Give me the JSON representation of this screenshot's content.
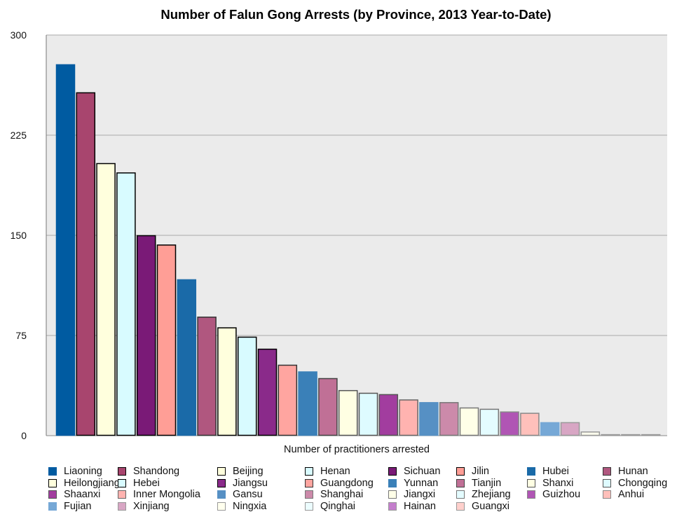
{
  "chart_data": {
    "type": "bar",
    "title": "Number of Falun Gong Arrests (by Province, 2013 Year-to-Date)",
    "xlabel": "Number of practitioners arrested",
    "ylabel": "",
    "ylim": [
      0,
      300
    ],
    "yticks": [
      "0",
      "75",
      "150",
      "225",
      "300"
    ],
    "grid": true,
    "legend_position": "bottom",
    "series": [
      {
        "name": "Liaoning",
        "value": 278,
        "color": "#005ba1",
        "border": "#005ba1"
      },
      {
        "name": "Shandong",
        "value": 257,
        "color": "#a8456e",
        "border": "#000000"
      },
      {
        "name": "Beijing",
        "value": 204,
        "color": "#ffffdd",
        "border": "#000000"
      },
      {
        "name": "Henan",
        "value": 197,
        "color": "#d8fbff",
        "border": "#000000"
      },
      {
        "name": "Sichuan",
        "value": 150,
        "color": "#7a1a77",
        "border": "#000000"
      },
      {
        "name": "Jilin",
        "value": 143,
        "color": "#ff9e96",
        "border": "#000000"
      },
      {
        "name": "Hubei",
        "value": 117,
        "color": "#1a6aa8",
        "border": "#1a6aa8"
      },
      {
        "name": "Hunan",
        "value": 89,
        "color": "#b0577f",
        "border": "#333333"
      },
      {
        "name": "Heilongjiang",
        "value": 81,
        "color": "#ffffdd",
        "border": "#000000"
      },
      {
        "name": "Hebei",
        "value": 74,
        "color": "#d8fbff",
        "border": "#000000"
      },
      {
        "name": "Jiangsu",
        "value": 65,
        "color": "#8a2a8a",
        "border": "#000000"
      },
      {
        "name": "Guangdong",
        "value": 53,
        "color": "#ffa5a0",
        "border": "#333333"
      },
      {
        "name": "Yunnan",
        "value": 48,
        "color": "#3a80b8",
        "border": "#3a80b8"
      },
      {
        "name": "Tianjin",
        "value": 43,
        "color": "#c07096",
        "border": "#444444"
      },
      {
        "name": "Shanxi",
        "value": 34,
        "color": "#ffffe3",
        "border": "#555555"
      },
      {
        "name": "Chongqing",
        "value": 32,
        "color": "#defbff",
        "border": "#555555"
      },
      {
        "name": "Shaanxi",
        "value": 31,
        "color": "#a23d9f",
        "border": "#555555"
      },
      {
        "name": "Inner Mongolia",
        "value": 27,
        "color": "#ffb3b0",
        "border": "#666666"
      },
      {
        "name": "Gansu",
        "value": 25,
        "color": "#5690c4",
        "border": "#5690c4"
      },
      {
        "name": "Shanghai",
        "value": 25,
        "color": "#cc8aaa",
        "border": "#777777"
      },
      {
        "name": "Jiangxi",
        "value": 21,
        "color": "#ffffe8",
        "border": "#777777"
      },
      {
        "name": "Zhejiang",
        "value": 20,
        "color": "#e4fcff",
        "border": "#777777"
      },
      {
        "name": "Guizhou",
        "value": 18,
        "color": "#b055b4",
        "border": "#888888"
      },
      {
        "name": "Anhui",
        "value": 17,
        "color": "#ffc0bb",
        "border": "#888888"
      },
      {
        "name": "Fujian",
        "value": 10,
        "color": "#76a8d6",
        "border": "#76a8d6"
      },
      {
        "name": "Xinjiang",
        "value": 10,
        "color": "#d8a6c4",
        "border": "#999999"
      },
      {
        "name": "Ningxia",
        "value": 3,
        "color": "#ffffee",
        "border": "#999999"
      },
      {
        "name": "Qinghai",
        "value": 1,
        "color": "#ecfdff",
        "border": "#999999"
      },
      {
        "name": "Hainan",
        "value": 1,
        "color": "#c47ecc",
        "border": "#999999"
      },
      {
        "name": "Guangxi",
        "value": 1,
        "color": "#ffd0cc",
        "border": "#999999"
      }
    ]
  }
}
